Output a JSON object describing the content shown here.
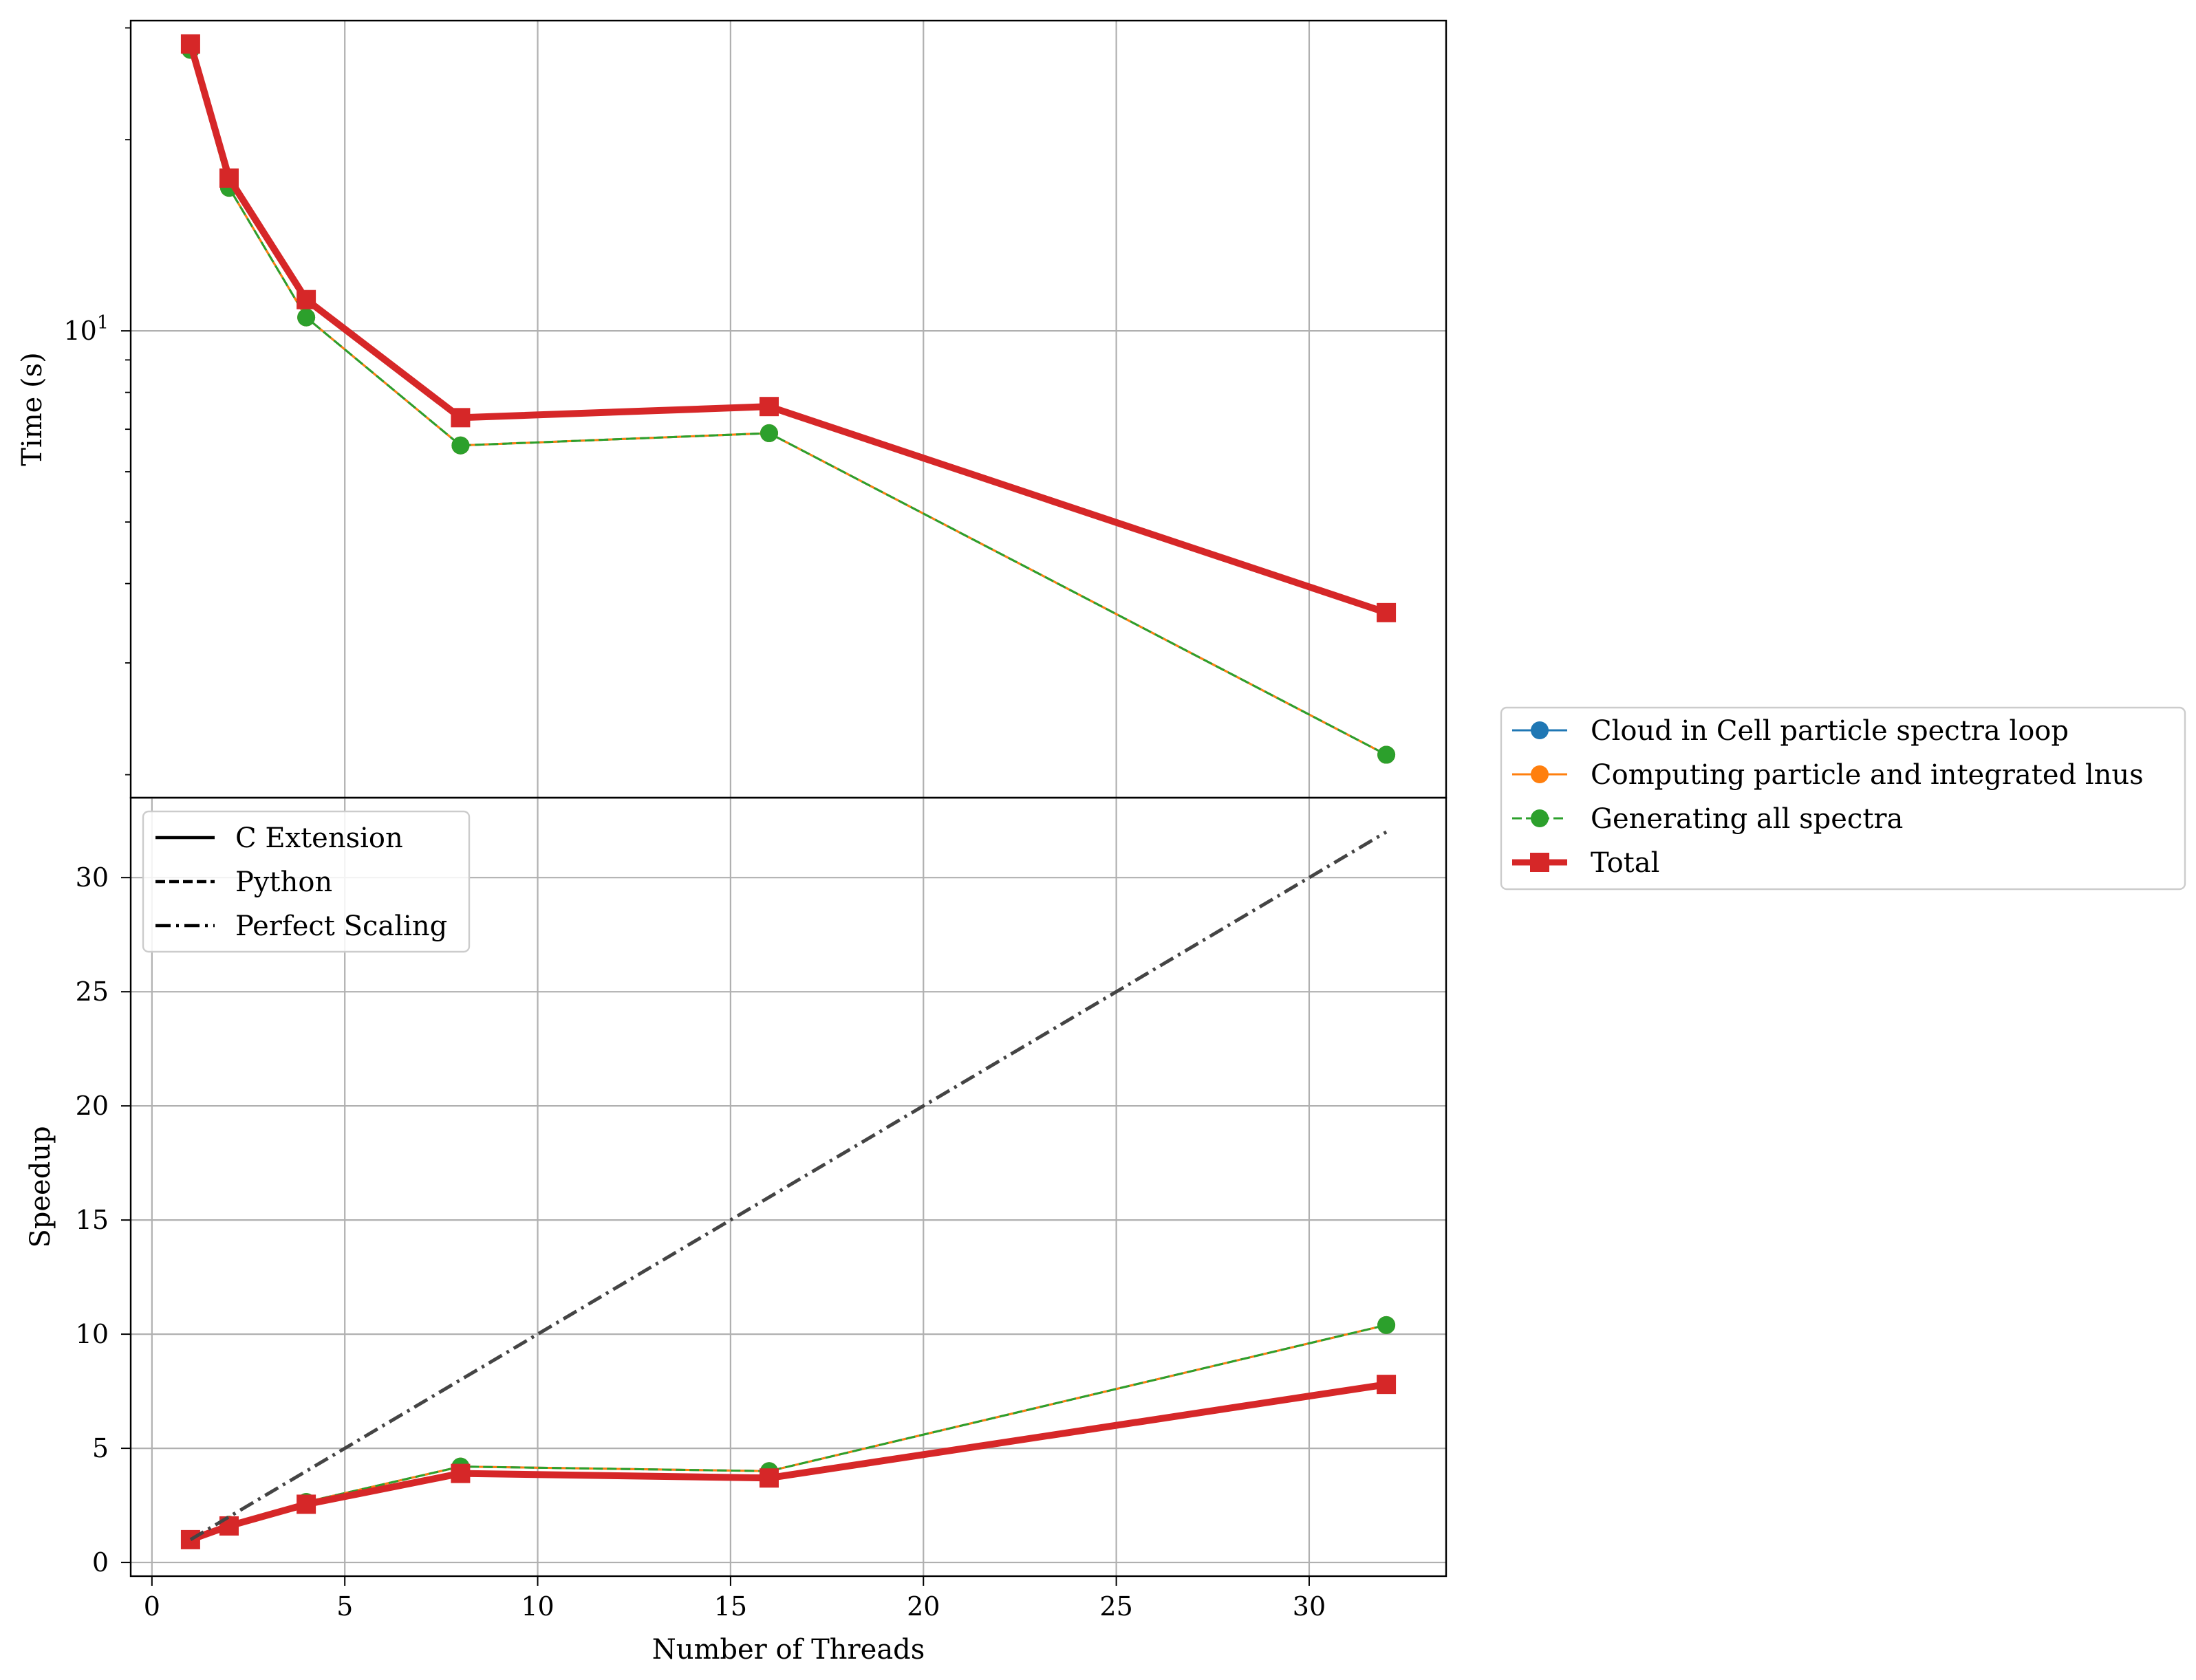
{
  "chart_data": [
    {
      "panel": "top",
      "type": "line",
      "ylabel": "Time (s)",
      "yscale": "log",
      "y_tick_labels": [
        {
          "value": 10,
          "base": "10",
          "exp": "1"
        }
      ],
      "grid": true,
      "x": [
        1,
        2,
        4,
        8,
        16,
        32
      ],
      "series": [
        {
          "name": "Cloud in Cell particle spectra loop",
          "color": "#1f77b4",
          "linestyle": "solid",
          "marker": "circle",
          "values": [
            27.7,
            16.8,
            10.5,
            6.6,
            6.9,
            2.15
          ]
        },
        {
          "name": "Computing particle and integrated lnus",
          "color": "#ff7f0e",
          "linestyle": "solid",
          "marker": "circle",
          "values": [
            27.7,
            16.8,
            10.5,
            6.6,
            6.9,
            2.15
          ]
        },
        {
          "name": "Generating all spectra",
          "color": "#2ca02c",
          "linestyle": "dashed",
          "marker": "circle",
          "values": [
            27.7,
            16.8,
            10.5,
            6.6,
            6.9,
            2.15
          ]
        },
        {
          "name": "Total",
          "color": "#d62728",
          "linestyle": "solid",
          "marker": "square",
          "values": [
            28.3,
            17.4,
            11.2,
            7.3,
            7.6,
            3.6
          ]
        }
      ]
    },
    {
      "panel": "bottom",
      "type": "line",
      "xlabel": "Number of Threads",
      "ylabel": "Speedup",
      "xlim": [
        -0.55,
        33.55
      ],
      "ylim": [
        -0.6,
        33.5
      ],
      "x_ticks": [
        0,
        5,
        10,
        15,
        20,
        25,
        30
      ],
      "y_ticks": [
        0,
        5,
        10,
        15,
        20,
        25,
        30
      ],
      "grid": true,
      "x": [
        1,
        2,
        4,
        8,
        16,
        32
      ],
      "series": [
        {
          "name": "Cloud in Cell particle spectra loop",
          "color": "#1f77b4",
          "linestyle": "solid",
          "marker": "circle",
          "values": [
            1.0,
            1.65,
            2.65,
            4.2,
            4.0,
            10.4
          ]
        },
        {
          "name": "Computing particle and integrated lnus",
          "color": "#ff7f0e",
          "linestyle": "solid",
          "marker": "circle",
          "values": [
            1.0,
            1.65,
            2.65,
            4.2,
            4.0,
            10.4
          ]
        },
        {
          "name": "Generating all spectra",
          "color": "#2ca02c",
          "linestyle": "dashed",
          "marker": "circle",
          "values": [
            1.0,
            1.65,
            2.65,
            4.2,
            4.0,
            10.4
          ]
        },
        {
          "name": "Total",
          "color": "#d62728",
          "linestyle": "solid",
          "marker": "square",
          "values": [
            1.0,
            1.6,
            2.55,
            3.9,
            3.7,
            7.8
          ]
        },
        {
          "name": "Perfect Scaling",
          "color": "#444444",
          "linestyle": "dashdot",
          "marker": "none",
          "values": [
            1,
            2,
            4,
            8,
            16,
            32
          ]
        }
      ]
    }
  ],
  "legend_styles": {
    "placement": "upper left of bottom panel",
    "entries": [
      {
        "label": "C Extension",
        "linestyle": "solid"
      },
      {
        "label": "Python",
        "linestyle": "dashed"
      },
      {
        "label": "Perfect Scaling",
        "linestyle": "dashdot"
      }
    ]
  },
  "legend_series": {
    "placement": "right of figure",
    "entries": [
      {
        "label": "Cloud in Cell particle spectra loop",
        "color": "#1f77b4",
        "linestyle": "solid",
        "marker": "circle"
      },
      {
        "label": "Computing particle and integrated lnus",
        "color": "#ff7f0e",
        "linestyle": "solid",
        "marker": "circle"
      },
      {
        "label": "Generating all spectra",
        "color": "#2ca02c",
        "linestyle": "dashed",
        "marker": "circle"
      },
      {
        "label": "Total",
        "color": "#d62728",
        "linestyle": "solid",
        "marker": "square"
      }
    ]
  }
}
